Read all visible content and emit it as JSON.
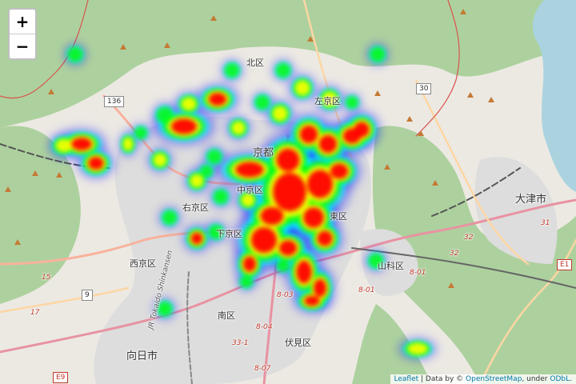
{
  "map": {
    "zoom_in_label": "+",
    "zoom_out_label": "−",
    "attribution": {
      "leaflet": "Leaflet",
      "separator": " | Data by © ",
      "osm": "OpenStreetMap",
      "under": ", under ",
      "odbl": "ODbL",
      "end": "."
    },
    "labels": {
      "kita_ku": "北区",
      "sakyo_ku": "左京区",
      "kyoto": "京都",
      "nakagyo_ku": "中京区",
      "ukyo_ku": "右京区",
      "shimogyo_ku": "下京区",
      "nishikyo_ku": "西京区",
      "minami_ku": "南区",
      "fushimi_ku": "伏見区",
      "yamashina_ku": "山科区",
      "higashiyama_ku": "東区",
      "otsu_shi": "大津市",
      "muko_shi": "向日市",
      "tokaido": "JR Tokaido Shinkansen"
    },
    "shields": {
      "r136": "136",
      "r30": "30",
      "r9": "9",
      "e1": "E1",
      "e9": "E9"
    },
    "route_numbers": {
      "n15": "15",
      "n17": "17",
      "n31": "31",
      "n32a": "32",
      "n32b": "32",
      "n801a": "8-01",
      "n801b": "8-01",
      "n803": "8-03",
      "n804": "8-04",
      "n807": "8-07",
      "n331": "33-1"
    },
    "heatmap_gradient": [
      "#0000ff",
      "#00ffff",
      "#00ff00",
      "#ffff00",
      "#ff0000"
    ],
    "colors": {
      "land": "#ece9e3",
      "forest": "#add19e",
      "water": "#aad3df",
      "urban": "#dddddd",
      "motorway": "#e892a2",
      "primary": "#fcd6a4",
      "trunk": "#f9b29c"
    }
  }
}
